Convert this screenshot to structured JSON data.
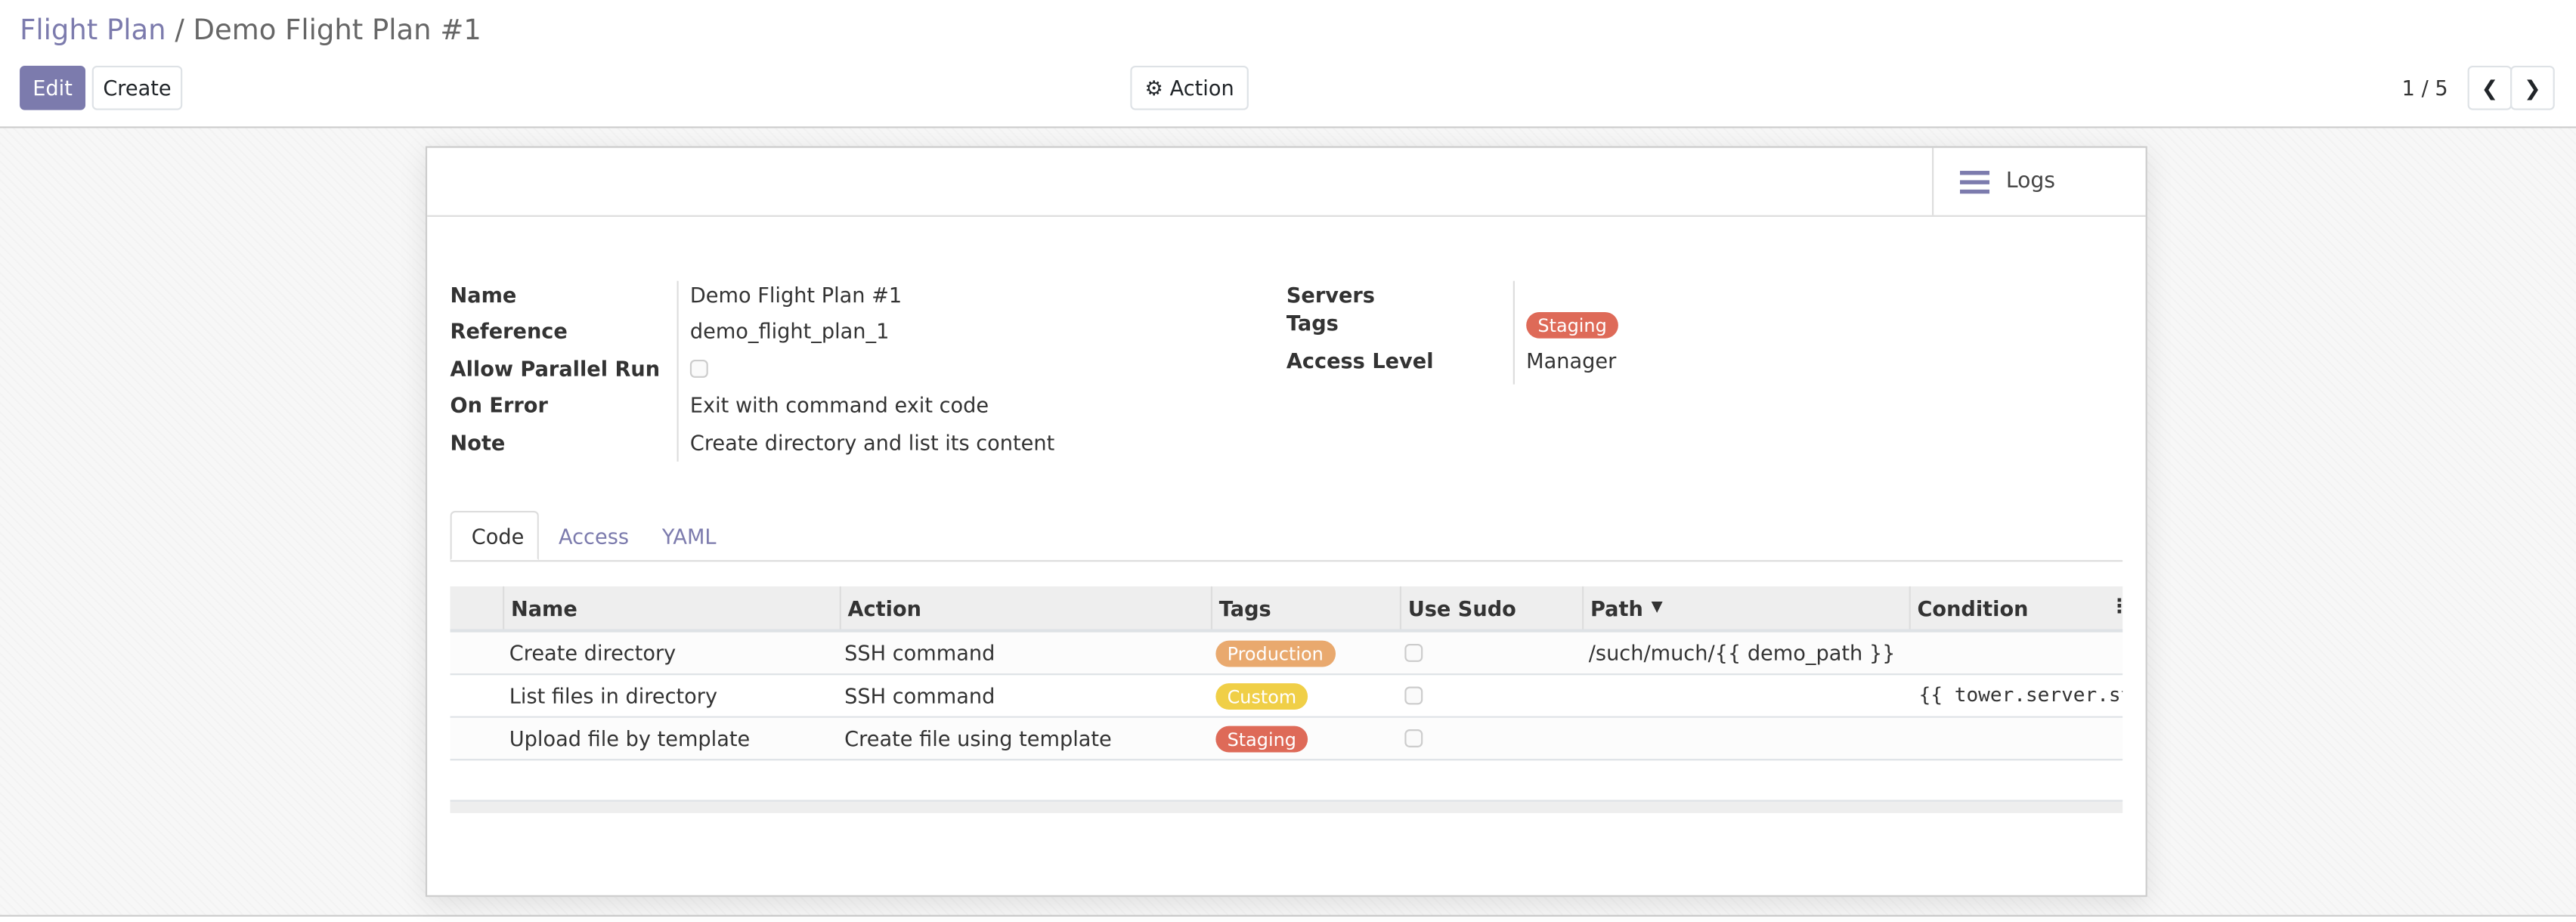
{
  "breadcrumb": {
    "parent": "Flight Plan",
    "separator": "/",
    "current": "Demo Flight Plan #1"
  },
  "toolbar": {
    "edit_label": "Edit",
    "create_label": "Create",
    "action_label": "Action",
    "pager": "1 / 5"
  },
  "header": {
    "logs_label": "Logs"
  },
  "fields": {
    "name": {
      "label": "Name",
      "value": "Demo Flight Plan #1"
    },
    "reference": {
      "label": "Reference",
      "value": "demo_flight_plan_1"
    },
    "allow_parallel": {
      "label": "Allow Parallel Run",
      "checked": false
    },
    "on_error": {
      "label": "On Error",
      "value": "Exit with command exit code"
    },
    "note": {
      "label": "Note",
      "value": "Create directory and list its content"
    },
    "servers": {
      "label": "Servers",
      "value": ""
    },
    "tags": {
      "label": "Tags",
      "value": "Staging"
    },
    "access_level": {
      "label": "Access Level",
      "value": "Manager"
    }
  },
  "tabs": [
    {
      "label": "Code",
      "active": true
    },
    {
      "label": "Access"
    },
    {
      "label": "YAML"
    }
  ],
  "table": {
    "columns": [
      "Name",
      "Action",
      "Tags",
      "Use Sudo",
      "Path",
      "Condition"
    ],
    "rows": [
      {
        "name": "Create directory",
        "action": "SSH command",
        "tag": "Production",
        "tag_color": "#e9a96e",
        "use_sudo": false,
        "path": "/such/much/{{ demo_path }}",
        "condition": ""
      },
      {
        "name": "List files in directory",
        "action": "SSH command",
        "tag": "Custom",
        "tag_color": "#f0cf47",
        "use_sudo": false,
        "path": "",
        "condition": "{{ tower.server.st"
      },
      {
        "name": "Upload file by template",
        "action": "Create file using template",
        "tag": "Staging",
        "tag_color": "#de6a58",
        "use_sudo": false,
        "path": "",
        "condition": ""
      }
    ]
  },
  "colors": {
    "accent": "#7c7bad",
    "staging": "#de6a58"
  }
}
